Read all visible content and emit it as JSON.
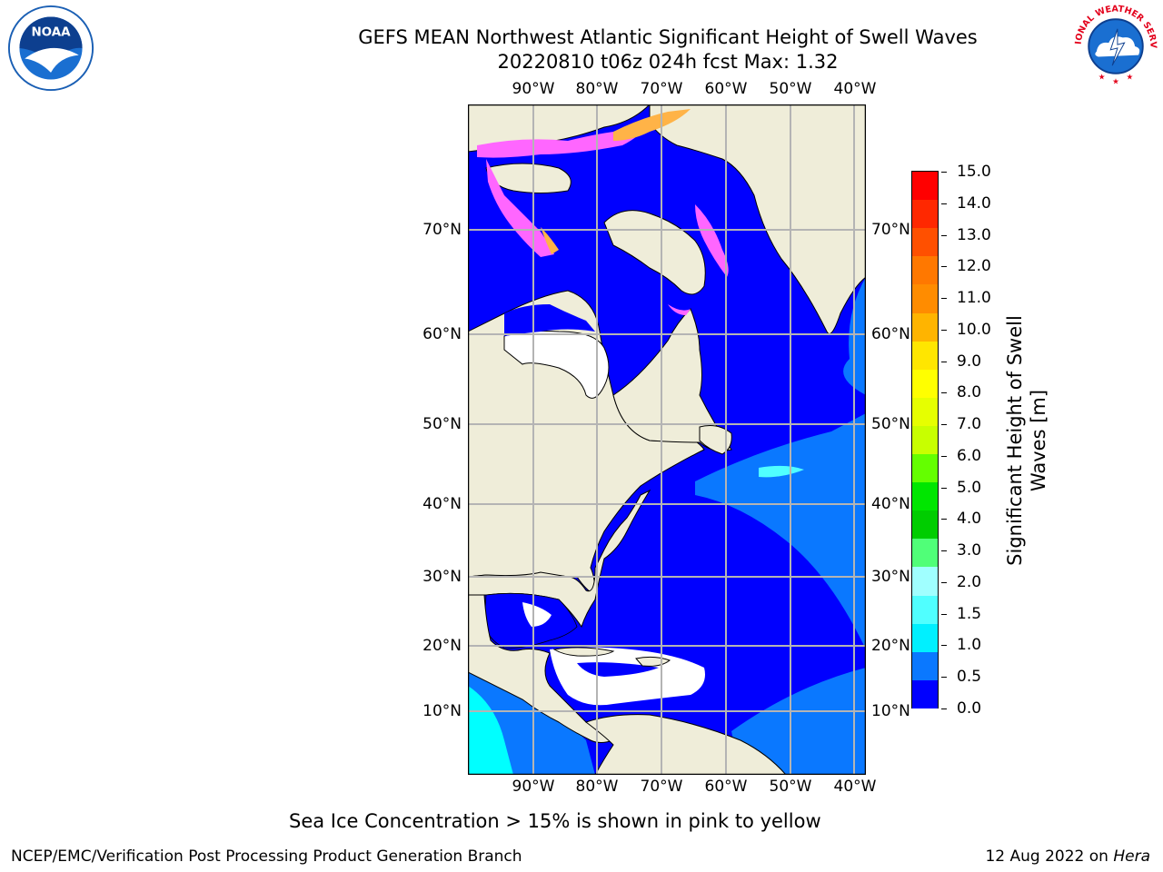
{
  "title": {
    "line1": "GEFS MEAN Northwest Atlantic Significant Height of Swell Waves",
    "line2": "20220810 t06z 024h fcst   Max: 1.32"
  },
  "map": {
    "lon_labels": [
      "90°W",
      "80°W",
      "70°W",
      "60°W",
      "50°W",
      "40°W"
    ],
    "lat_labels": [
      "70°N",
      "60°N",
      "50°N",
      "40°N",
      "30°N",
      "20°N",
      "10°N"
    ],
    "colors": {
      "land": "#efedd9",
      "ocean_low": "#0000ff",
      "ocean_mid": "#0a78ff",
      "ocean_high": "#00ffff",
      "ice_pink": "#ff66ff",
      "ice_orange": "#ffb347",
      "no_data": "#ffffff",
      "grid": "#b4b4b4"
    }
  },
  "colorbar": {
    "title_line1": "Significant Height of Swell",
    "title_line2": "Waves [m]",
    "tick_labels": [
      "15.0",
      "14.0",
      "13.0",
      "12.0",
      "11.0",
      "10.0",
      "9.0",
      "8.0",
      "7.0",
      "6.0",
      "5.0",
      "4.0",
      "3.0",
      "2.0",
      "1.5",
      "1.0",
      "0.5",
      "0.0"
    ],
    "bin_colors_top_to_bottom": [
      "#ff0000",
      "#ff2800",
      "#ff5000",
      "#ff7800",
      "#ff8c00",
      "#ffb400",
      "#ffe600",
      "#ffff00",
      "#e6ff00",
      "#c8ff00",
      "#64ff00",
      "#00e600",
      "#00cd00",
      "#50ff78",
      "#a0ffff",
      "#50ffff",
      "#00f0ff",
      "#0a78ff",
      "#0000ff"
    ]
  },
  "footnote": "Sea Ice Concentration > 15% is shown in pink to yellow",
  "credit_left": "NCEP/EMC/Verification Post Processing Product Generation Branch",
  "credit_right_prefix": "12 Aug 2022 on ",
  "credit_right_host": "Hera",
  "logos": {
    "noaa_text": "NOAA",
    "noaa_ring": "NATIONAL OCEANIC AND ATMOSPHERIC ADMINISTRATION · U.S. DEPARTMENT OF COMMERCE",
    "nws_ring": "NATIONAL WEATHER SERVICE"
  }
}
